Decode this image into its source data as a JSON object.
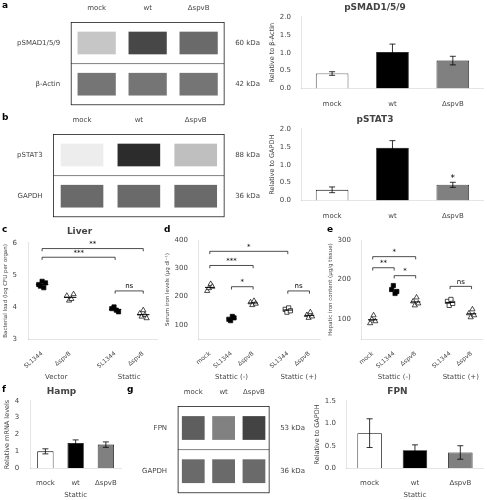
{
  "chart_data": [
    {
      "type": "blot",
      "panel_label": "a",
      "categories": [
        "mock",
        "wt",
        "ΔspvB"
      ],
      "series": [
        {
          "name": "pSMAD1/5/9",
          "annotation": "60 kDa",
          "values": [
            0.25,
            0.8,
            0.65
          ]
        },
        {
          "name": "β-Actin",
          "annotation": "42 kDa",
          "values": [
            0.6,
            0.6,
            0.6
          ]
        }
      ]
    },
    {
      "type": "bar",
      "title": "pSMAD1/5/9",
      "ylabel": "Relative to β-Actin",
      "categories": [
        "mock",
        "wt",
        "ΔspvB"
      ],
      "values": [
        0.42,
        1.02,
        0.78
      ],
      "errors": [
        0.05,
        0.22,
        0.12
      ],
      "colors": [
        "white",
        "black",
        "#808080"
      ],
      "ylim": [
        0,
        2.0
      ],
      "yticks": [
        {
          "value": 0.0,
          "label": "0.0"
        },
        0.5,
        {
          "value": 1.0,
          "label": "1.0"
        },
        1.5,
        {
          "value": 2.0,
          "label": "2.0"
        }
      ],
      "grid": false
    },
    {
      "type": "blot",
      "panel_label": "b",
      "categories": [
        "mock",
        "wt",
        "ΔspvB"
      ],
      "series": [
        {
          "name": "pSTAT3",
          "annotation": "88 kDa",
          "values": [
            0.08,
            0.92,
            0.28
          ]
        },
        {
          "name": "GAPDH",
          "annotation": "36 kDa",
          "values": [
            0.65,
            0.65,
            0.65
          ]
        }
      ]
    },
    {
      "type": "bar",
      "title": "pSTAT3",
      "ylabel": "Relative to GAPDH",
      "categories": [
        "mock",
        "wt",
        "ΔspvB"
      ],
      "values": [
        0.3,
        1.47,
        0.44
      ],
      "errors": [
        0.08,
        0.2,
        0.07
      ],
      "colors": [
        "white",
        "black",
        "#808080"
      ],
      "ylim": [
        0,
        2.0
      ],
      "yticks": [
        {
          "value": 0.0,
          "label": "0.0"
        },
        0.5,
        {
          "value": 1.0,
          "label": "1.0"
        },
        1.5,
        {
          "value": 2.0,
          "label": "2.0"
        }
      ],
      "annotations": [
        {
          "label": "*",
          "category": "ΔspvB"
        }
      ],
      "grid": false
    },
    {
      "type": "scatter",
      "panel_label": "c",
      "title": "Liver",
      "ylabel": "Bacterial load (log CFU per organ)",
      "ylim": [
        3,
        6
      ],
      "yticks": [
        3,
        4,
        5,
        6
      ],
      "groups": [
        "Vector",
        "Stattic"
      ],
      "series": [
        {
          "name": "SL1344",
          "group": "Vector",
          "marker": "square",
          "color": "black",
          "values": [
            4.7,
            4.65,
            4.8,
            4.6,
            4.75
          ],
          "mean": 4.7
        },
        {
          "name": "ΔspvB",
          "group": "Vector",
          "marker": "triangle",
          "color": "white",
          "values": [
            4.35,
            4.2,
            4.25,
            4.4
          ],
          "mean": 4.3
        },
        {
          "name": "SL1344",
          "group": "Stattic",
          "marker": "square",
          "color": "black",
          "values": [
            3.95,
            4.0,
            3.9,
            3.85
          ],
          "mean": 3.925
        },
        {
          "name": "ΔspvB",
          "group": "Stattic",
          "marker": "triangle",
          "color": "white",
          "values": [
            3.8,
            3.7,
            3.9,
            3.75,
            3.65
          ],
          "mean": 3.76
        }
      ],
      "significance": [
        {
          "from": 0,
          "to": 2,
          "label": "***",
          "y": 5.55
        },
        {
          "from": 0,
          "to": 3,
          "label": "**",
          "y": 5.82
        },
        {
          "from": 2,
          "to": 3,
          "label": "ns",
          "y": 4.5
        }
      ],
      "grid": false
    },
    {
      "type": "scatter",
      "panel_label": "d",
      "ylabel": "Serum iron levels (μg dl⁻¹)",
      "ylim": [
        50,
        400
      ],
      "yticks": [
        100,
        200,
        300,
        400
      ],
      "groups": [
        "Stattic (-)",
        "Stattic (+)"
      ],
      "series": [
        {
          "name": "mock",
          "group": "Stattic (-)",
          "marker": "triangle",
          "color": "white",
          "values": [
            220,
            230,
            245,
            235
          ],
          "mean": 232.5
        },
        {
          "name": "SL1344",
          "group": "Stattic (-)",
          "marker": "square",
          "color": "black",
          "values": [
            120,
            115,
            130,
            125
          ],
          "mean": 122.5
        },
        {
          "name": "ΔspvB",
          "group": "Stattic (-)",
          "marker": "triangle",
          "color": "white",
          "values": [
            180,
            170,
            185,
            175
          ],
          "mean": 177.5
        },
        {
          "name": "SL1344",
          "group": "Stattic (+)",
          "marker": "square",
          "color": "white",
          "values": [
            155,
            145,
            160,
            150
          ],
          "mean": 152.5
        },
        {
          "name": "ΔspvB",
          "group": "Stattic (+)",
          "marker": "triangle",
          "color": "white",
          "values": [
            135,
            125,
            145,
            130
          ],
          "mean": 133.75
        }
      ],
      "significance": [
        {
          "from": 1,
          "to": 2,
          "label": "*",
          "y": 235
        },
        {
          "from": 0,
          "to": 2,
          "label": "***",
          "y": 310
        },
        {
          "from": 3,
          "to": 4,
          "label": "ns",
          "y": 220
        },
        {
          "from": 0,
          "to": 3,
          "label": "*",
          "y": 360
        }
      ],
      "grid": false
    },
    {
      "type": "scatter",
      "panel_label": "e",
      "ylabel": "Hepatic iron content (μg/g tissue)",
      "ylim": [
        50,
        300
      ],
      "yticks": [
        100,
        200,
        300
      ],
      "groups": [
        "Stattic (-)",
        "Stattic (+)"
      ],
      "series": [
        {
          "name": "mock",
          "group": "Stattic (-)",
          "marker": "triangle",
          "color": "white",
          "values": [
            90,
            100,
            110,
            95
          ],
          "mean": 98.75
        },
        {
          "name": "SL1344",
          "group": "Stattic (-)",
          "marker": "square",
          "color": "black",
          "values": [
            175,
            185,
            165,
            170
          ],
          "mean": 173.75
        },
        {
          "name": "ΔspvB",
          "group": "Stattic (-)",
          "marker": "triangle",
          "color": "white",
          "values": [
            145,
            135,
            155,
            140
          ],
          "mean": 143.75
        },
        {
          "name": "SL1344",
          "group": "Stattic (+)",
          "marker": "square",
          "color": "white",
          "values": [
            145,
            135,
            150,
            140
          ],
          "mean": 142.5
        },
        {
          "name": "ΔspvB",
          "group": "Stattic (+)",
          "marker": "triangle",
          "color": "white",
          "values": [
            115,
            105,
            125,
            110
          ],
          "mean": 113.75
        }
      ],
      "significance": [
        {
          "from": 0,
          "to": 1,
          "label": "**",
          "y": 230
        },
        {
          "from": 1,
          "to": 2,
          "label": "*",
          "y": 210
        },
        {
          "from": 0,
          "to": 2,
          "label": "*",
          "y": 258
        },
        {
          "from": 3,
          "to": 4,
          "label": "ns",
          "y": 183
        }
      ],
      "grid": false
    },
    {
      "type": "bar",
      "panel_label": "f",
      "title": "Hamp",
      "xlabel": "Stattic",
      "ylabel": "Relative mRNA levels",
      "categories": [
        "mock",
        "wt",
        "ΔspvB"
      ],
      "values": [
        1.0,
        1.5,
        1.4
      ],
      "errors": [
        0.15,
        0.18,
        0.16
      ],
      "colors": [
        "white",
        "black",
        "#808080"
      ],
      "ylim": [
        0,
        4
      ],
      "yticks": [
        0,
        1,
        2,
        3,
        4
      ],
      "grid": false
    },
    {
      "type": "blot",
      "panel_label": "g",
      "categories": [
        "mock",
        "wt",
        "ΔspvB"
      ],
      "series": [
        {
          "name": "FPN",
          "annotation": "53 kDa",
          "values": [
            0.7,
            0.55,
            0.82
          ]
        },
        {
          "name": "GAPDH",
          "annotation": "36 kDa",
          "values": [
            0.65,
            0.65,
            0.65
          ]
        }
      ]
    },
    {
      "type": "bar",
      "title": "FPN",
      "xlabel": "Stattic",
      "ylabel": "Relative to GAPDH",
      "categories": [
        "mock",
        "wt",
        "ΔspvB"
      ],
      "values": [
        0.78,
        0.4,
        0.35
      ],
      "errors": [
        0.32,
        0.12,
        0.15
      ],
      "colors": [
        "white",
        "black",
        "#808080"
      ],
      "ylim": [
        0,
        1.5
      ],
      "yticks": [
        {
          "value": 0.0,
          "label": "0.0"
        },
        0.5,
        {
          "value": 1.0,
          "label": "1.0"
        },
        1.5
      ],
      "grid": false
    }
  ]
}
